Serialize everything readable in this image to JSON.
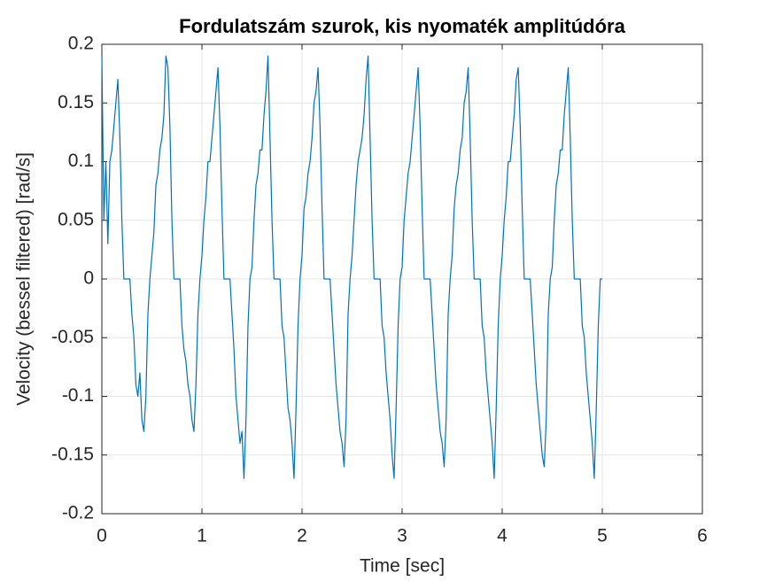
{
  "chart_data": {
    "type": "line",
    "title": "Fordulatszám szurok, kis nyomaték amplitúdóra",
    "x_label": "Time [sec]",
    "y_label": "Velocity (bessel filtered) [rad/s]",
    "color": "#0072BD",
    "grid": true,
    "xlim": [
      0,
      6
    ],
    "xticks": [
      0,
      1,
      2,
      3,
      4,
      5,
      6
    ],
    "ylim": [
      -0.2,
      0.2
    ],
    "yticks": [
      -0.2,
      -0.15,
      -0.1,
      -0.05,
      0,
      0.05,
      0.1,
      0.15,
      0.2
    ],
    "x": [
      0,
      0.02,
      0.04,
      0.06,
      0.08,
      0.1,
      0.12,
      0.14,
      0.16,
      0.18,
      0.2,
      0.22,
      0.24,
      0.26,
      0.28,
      0.3,
      0.32,
      0.34,
      0.36,
      0.38,
      0.4,
      0.42,
      0.44,
      0.46,
      0.48,
      0.5,
      0.52,
      0.54,
      0.56,
      0.58,
      0.6,
      0.62,
      0.64,
      0.66,
      0.68,
      0.7,
      0.72,
      0.74,
      0.76,
      0.78,
      0.8,
      0.82,
      0.84,
      0.86,
      0.88,
      0.9,
      0.92,
      0.94,
      0.96,
      0.98,
      1,
      1.02,
      1.04,
      1.06,
      1.08,
      1.1,
      1.12,
      1.14,
      1.16,
      1.18,
      1.2,
      1.22,
      1.24,
      1.26,
      1.28,
      1.3,
      1.32,
      1.34,
      1.36,
      1.38,
      1.4,
      1.42,
      1.44,
      1.46,
      1.48,
      1.5,
      1.52,
      1.54,
      1.56,
      1.58,
      1.6,
      1.62,
      1.64,
      1.66,
      1.68,
      1.7,
      1.72,
      1.74,
      1.76,
      1.78,
      1.8,
      1.82,
      1.84,
      1.86,
      1.88,
      1.9,
      1.92,
      1.94,
      1.96,
      1.98,
      2,
      2.02,
      2.04,
      2.06,
      2.08,
      2.1,
      2.12,
      2.14,
      2.16,
      2.18,
      2.2,
      2.22,
      2.24,
      2.26,
      2.28,
      2.3,
      2.32,
      2.34,
      2.36,
      2.38,
      2.4,
      2.42,
      2.44,
      2.46,
      2.48,
      2.5,
      2.52,
      2.54,
      2.56,
      2.58,
      2.6,
      2.62,
      2.64,
      2.66,
      2.68,
      2.7,
      2.72,
      2.74,
      2.76,
      2.78,
      2.8,
      2.82,
      2.84,
      2.86,
      2.88,
      2.9,
      2.92,
      2.94,
      2.96,
      2.98,
      3,
      3.02,
      3.04,
      3.06,
      3.08,
      3.1,
      3.12,
      3.14,
      3.16,
      3.18,
      3.2,
      3.22,
      3.24,
      3.26,
      3.28,
      3.3,
      3.32,
      3.34,
      3.36,
      3.38,
      3.4,
      3.42,
      3.44,
      3.46,
      3.48,
      3.5,
      3.52,
      3.54,
      3.56,
      3.58,
      3.6,
      3.62,
      3.64,
      3.66,
      3.68,
      3.7,
      3.72,
      3.74,
      3.76,
      3.78,
      3.8,
      3.82,
      3.84,
      3.86,
      3.88,
      3.9,
      3.92,
      3.94,
      3.96,
      3.98,
      4,
      4.02,
      4.04,
      4.06,
      4.08,
      4.1,
      4.12,
      4.14,
      4.16,
      4.18,
      4.2,
      4.22,
      4.24,
      4.26,
      4.28,
      4.3,
      4.32,
      4.34,
      4.36,
      4.38,
      4.4,
      4.42,
      4.44,
      4.46,
      4.48,
      4.5,
      4.52,
      4.54,
      4.56,
      4.58,
      4.6,
      4.62,
      4.64,
      4.66,
      4.68,
      4.7,
      4.72,
      4.74,
      4.76,
      4.78,
      4.8,
      4.82,
      4.84,
      4.86,
      4.88,
      4.9,
      4.92,
      4.94,
      4.96,
      4.98,
      5
    ],
    "values": [
      0.19,
      0.05,
      0.1,
      0.03,
      0.1,
      0.11,
      0.13,
      0.15,
      0.17,
      0.12,
      0.05,
      0,
      0,
      0,
      0,
      -0.03,
      -0.05,
      -0.09,
      -0.1,
      -0.08,
      -0.12,
      -0.13,
      -0.1,
      -0.03,
      0,
      0.02,
      0.04,
      0.08,
      0.09,
      0.11,
      0.12,
      0.14,
      0.19,
      0.18,
      0.13,
      0.05,
      0,
      0,
      0,
      0,
      -0.04,
      -0.06,
      -0.07,
      -0.09,
      -0.1,
      -0.12,
      -0.13,
      -0.09,
      -0.03,
      0,
      0.02,
      0.05,
      0.07,
      0.1,
      0.1,
      0.12,
      0.14,
      0.16,
      0.18,
      0.13,
      0.06,
      0,
      0,
      0,
      0,
      -0.03,
      -0.06,
      -0.1,
      -0.12,
      -0.14,
      -0.13,
      -0.17,
      -0.12,
      -0.04,
      0,
      0.01,
      0.05,
      0.08,
      0.09,
      0.11,
      0.11,
      0.14,
      0.16,
      0.19,
      0.12,
      0.05,
      0,
      0,
      0,
      0,
      -0.04,
      -0.05,
      -0.08,
      -0.11,
      -0.12,
      -0.14,
      -0.17,
      -0.11,
      -0.04,
      0,
      0.02,
      0.06,
      0.07,
      0.09,
      0.1,
      0.12,
      0.15,
      0.16,
      0.18,
      0.13,
      0.06,
      0,
      0,
      0,
      0,
      -0.03,
      -0.06,
      -0.09,
      -0.11,
      -0.13,
      -0.14,
      -0.16,
      -0.12,
      -0.03,
      0,
      0.02,
      0.05,
      0.08,
      0.1,
      0.11,
      0.12,
      0.14,
      0.17,
      0.19,
      0.12,
      0.05,
      0,
      0,
      0,
      0,
      -0.04,
      -0.05,
      -0.08,
      -0.1,
      -0.12,
      -0.15,
      -0.17,
      -0.11,
      -0.04,
      0,
      0.01,
      0.05,
      0.07,
      0.09,
      0.1,
      0.12,
      0.14,
      0.16,
      0.18,
      0.13,
      0.06,
      0,
      0,
      0,
      0,
      -0.03,
      -0.06,
      -0.09,
      -0.11,
      -0.13,
      -0.14,
      -0.16,
      -0.12,
      -0.03,
      0,
      0.02,
      0.06,
      0.08,
      0.09,
      0.11,
      0.12,
      0.15,
      0.16,
      0.18,
      0.12,
      0.05,
      0,
      0,
      0,
      0,
      -0.04,
      -0.05,
      -0.08,
      -0.1,
      -0.12,
      -0.14,
      -0.17,
      -0.11,
      -0.04,
      0,
      0.02,
      0.05,
      0.07,
      0.1,
      0.1,
      0.12,
      0.14,
      0.17,
      0.18,
      0.13,
      0.06,
      0,
      0,
      0,
      0,
      -0.03,
      -0.06,
      -0.09,
      -0.11,
      -0.13,
      -0.15,
      -0.16,
      -0.12,
      -0.03,
      0,
      0.01,
      0.05,
      0.08,
      0.09,
      0.11,
      0.11,
      0.14,
      0.16,
      0.18,
      0.12,
      0.05,
      0,
      0,
      0,
      0,
      -0.04,
      -0.05,
      -0.08,
      -0.1,
      -0.12,
      -0.14,
      -0.17,
      -0.11,
      -0.04,
      0,
      0
    ]
  }
}
